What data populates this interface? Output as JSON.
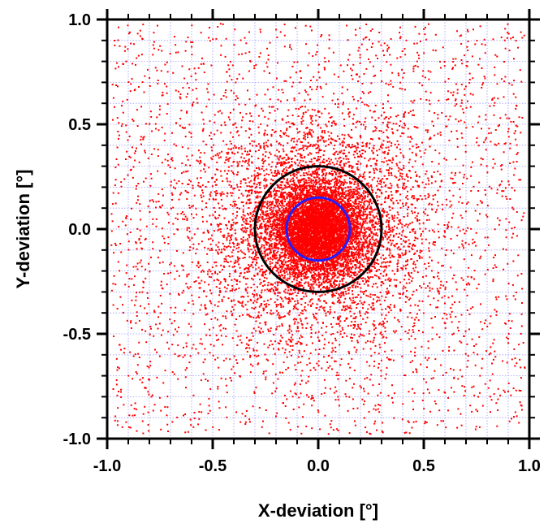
{
  "chart_data": {
    "type": "scatter",
    "title": "",
    "xlabel": "X-deviation [°]",
    "ylabel": "Y-deviation [°]",
    "xlim": [
      -1.0,
      1.0
    ],
    "ylim": [
      -1.0,
      1.0
    ],
    "grid": true,
    "x_ticks": [
      "-1.0",
      "-0.5",
      "0.0",
      "0.5",
      "1.0"
    ],
    "y_ticks": [
      "-1.0",
      "-0.5",
      "0.0",
      "0.5",
      "1.0"
    ],
    "colors": {
      "points": "#ff0000",
      "grid": "#9a9aff",
      "outer_circle": "#000000",
      "inner_circle": "#1f1fff",
      "axis": "#000000"
    },
    "series": [
      {
        "kind": "scatter",
        "approx_points": 12000,
        "distribution": "radially dense about the origin, thinning out toward the plot edges",
        "center": [
          0.0,
          0.0
        ]
      }
    ],
    "circles": [
      {
        "center": [
          0.0,
          0.0
        ],
        "radius": 0.3,
        "color": "#000000"
      },
      {
        "center": [
          0.0,
          0.0
        ],
        "radius": 0.15,
        "color": "#1f1fff"
      }
    ]
  }
}
